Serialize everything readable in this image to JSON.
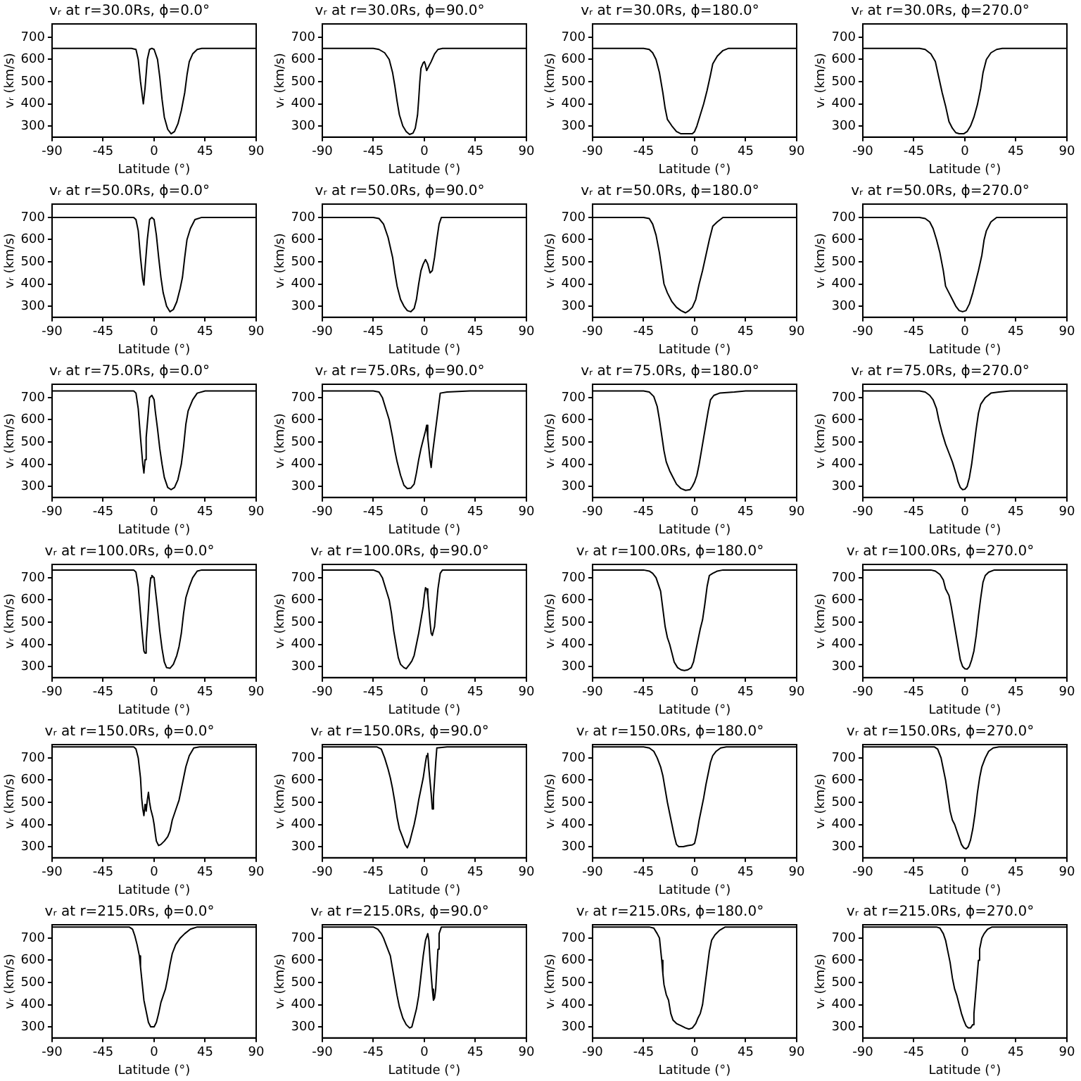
{
  "chart_data": [
    {
      "type": "line",
      "title": "vᵣ at r=30.0Rs, ϕ=0.0°",
      "xlabel": "Latitude (°)",
      "ylabel": "vᵣ (km/s)",
      "color": "#000000",
      "xlim": [
        -90,
        90
      ],
      "xticks": [
        -90,
        -45,
        0,
        45,
        90
      ],
      "ylim": [
        250,
        760
      ],
      "yticks": [
        300,
        400,
        500,
        600,
        700
      ],
      "x": [
        -90,
        -20,
        -16,
        -14,
        -12,
        -10,
        -9.5,
        -8,
        -6,
        -4,
        -2,
        0,
        3,
        5,
        7,
        9,
        12,
        15,
        18,
        21,
        24,
        27,
        29,
        31,
        34,
        38,
        42,
        90
      ],
      "values": [
        650,
        650,
        645,
        600,
        500,
        420,
        400,
        470,
        600,
        645,
        650,
        645,
        600,
        520,
        420,
        340,
        285,
        265,
        275,
        310,
        370,
        450,
        530,
        590,
        625,
        645,
        650,
        650
      ]
    },
    {
      "type": "line",
      "title": "vᵣ at r=30.0Rs, ϕ=90.0°",
      "xlabel": "Latitude (°)",
      "ylabel": "vᵣ (km/s)",
      "color": "#000000",
      "xlim": [
        -90,
        90
      ],
      "xticks": [
        -90,
        -45,
        0,
        45,
        90
      ],
      "ylim": [
        250,
        760
      ],
      "yticks": [
        300,
        400,
        500,
        600,
        700
      ],
      "x": [
        -90,
        -45,
        -40,
        -35,
        -31,
        -28,
        -26,
        -24,
        -22,
        -19,
        -16,
        -13,
        -10,
        -8,
        -6,
        -5,
        -4,
        -3,
        -1,
        0,
        1,
        2,
        4,
        6,
        9,
        12,
        16,
        90
      ],
      "values": [
        650,
        650,
        645,
        630,
        600,
        540,
        480,
        410,
        350,
        300,
        275,
        262,
        268,
        290,
        350,
        420,
        500,
        560,
        585,
        590,
        575,
        550,
        570,
        590,
        625,
        645,
        650,
        650
      ]
    },
    {
      "type": "line",
      "title": "vᵣ at r=30.0Rs, ϕ=180.0°",
      "xlabel": "Latitude (°)",
      "ylabel": "vᵣ (km/s)",
      "color": "#000000",
      "xlim": [
        -90,
        90
      ],
      "xticks": [
        -90,
        -45,
        0,
        45,
        90
      ],
      "ylim": [
        250,
        760
      ],
      "yticks": [
        300,
        400,
        500,
        600,
        700
      ],
      "x": [
        -90,
        -45,
        -40,
        -37,
        -34,
        -31,
        -28,
        -26,
        -24,
        -20,
        -16,
        -12,
        -6,
        -2,
        0,
        2,
        5,
        8,
        11,
        14,
        16,
        20,
        25,
        30,
        90
      ],
      "values": [
        650,
        650,
        645,
        630,
        600,
        540,
        450,
        380,
        330,
        300,
        275,
        265,
        265,
        265,
        275,
        300,
        350,
        400,
        460,
        530,
        580,
        615,
        640,
        650,
        650
      ]
    },
    {
      "type": "line",
      "title": "vᵣ at r=30.0Rs, ϕ=270.0°",
      "xlabel": "Latitude (°)",
      "ylabel": "vᵣ (km/s)",
      "color": "#000000",
      "xlim": [
        -90,
        90
      ],
      "xticks": [
        -90,
        -45,
        0,
        45,
        90
      ],
      "ylim": [
        250,
        760
      ],
      "yticks": [
        300,
        400,
        500,
        600,
        700
      ],
      "x": [
        -90,
        -40,
        -35,
        -30,
        -26,
        -23,
        -20,
        -17,
        -14,
        -11,
        -8,
        -5,
        -1,
        2,
        5,
        8,
        11,
        14,
        16,
        19,
        23,
        28,
        33,
        90
      ],
      "values": [
        650,
        650,
        645,
        625,
        590,
        520,
        450,
        390,
        320,
        290,
        270,
        265,
        265,
        275,
        300,
        340,
        395,
        470,
        540,
        600,
        630,
        645,
        650,
        650
      ]
    },
    {
      "type": "line",
      "title": "vᵣ at r=50.0Rs, ϕ=0.0°",
      "xlabel": "Latitude (°)",
      "ylabel": "vᵣ (km/s)",
      "color": "#000000",
      "xlim": [
        -90,
        90
      ],
      "xticks": [
        -90,
        -45,
        0,
        45,
        90
      ],
      "ylim": [
        250,
        760
      ],
      "yticks": [
        300,
        400,
        500,
        600,
        700
      ],
      "x": [
        -90,
        -18,
        -16,
        -14,
        -12,
        -10,
        -9,
        -8,
        -6,
        -4,
        -2,
        0,
        2,
        4,
        6,
        8,
        11,
        14,
        17,
        20,
        23,
        25,
        27,
        29,
        32,
        36,
        42,
        90
      ],
      "values": [
        700,
        700,
        690,
        640,
        520,
        420,
        395,
        470,
        600,
        690,
        700,
        690,
        620,
        520,
        430,
        360,
        300,
        275,
        285,
        320,
        380,
        430,
        520,
        600,
        650,
        690,
        700,
        700
      ]
    },
    {
      "type": "line",
      "title": "vᵣ at r=50.0Rs, ϕ=90.0°",
      "xlabel": "Latitude (°)",
      "ylabel": "vᵣ (km/s)",
      "color": "#000000",
      "xlim": [
        -90,
        90
      ],
      "xticks": [
        -90,
        -45,
        0,
        45,
        90
      ],
      "ylim": [
        250,
        760
      ],
      "yticks": [
        300,
        400,
        500,
        600,
        700
      ],
      "x": [
        -90,
        -45,
        -40,
        -36,
        -32,
        -28,
        -26,
        -24,
        -21,
        -18,
        -15,
        -12,
        -9,
        -7,
        -5,
        -3,
        -1,
        1,
        3,
        5,
        7,
        9,
        11,
        13,
        15,
        90
      ],
      "values": [
        700,
        700,
        695,
        670,
        610,
        520,
        450,
        390,
        330,
        300,
        280,
        275,
        290,
        330,
        400,
        460,
        490,
        510,
        490,
        450,
        460,
        520,
        600,
        670,
        700,
        700
      ]
    },
    {
      "type": "line",
      "title": "vᵣ at r=50.0Rs, ϕ=180.0°",
      "xlabel": "Latitude (°)",
      "ylabel": "vᵣ (km/s)",
      "color": "#000000",
      "xlim": [
        -90,
        90
      ],
      "xticks": [
        -90,
        -45,
        0,
        45,
        90
      ],
      "ylim": [
        250,
        760
      ],
      "yticks": [
        300,
        400,
        500,
        600,
        700
      ],
      "x": [
        -90,
        -45,
        -40,
        -37,
        -34,
        -31,
        -29,
        -27,
        -24,
        -20,
        -16,
        -12,
        -8,
        -5,
        -2,
        1,
        4,
        7,
        10,
        13,
        16,
        20,
        25,
        90
      ],
      "values": [
        700,
        700,
        695,
        670,
        620,
        540,
        470,
        400,
        360,
        320,
        295,
        280,
        270,
        280,
        295,
        330,
        400,
        460,
        530,
        600,
        660,
        680,
        700,
        700
      ]
    },
    {
      "type": "line",
      "title": "vᵣ at r=50.0Rs, ϕ=270.0°",
      "xlabel": "Latitude (°)",
      "ylabel": "vᵣ (km/s)",
      "color": "#000000",
      "xlim": [
        -90,
        90
      ],
      "xticks": [
        -90,
        -45,
        0,
        45,
        90
      ],
      "ylim": [
        250,
        760
      ],
      "yticks": [
        300,
        400,
        500,
        600,
        700
      ],
      "x": [
        -90,
        -40,
        -35,
        -31,
        -28,
        -25,
        -22,
        -19,
        -17,
        -14,
        -11,
        -8,
        -5,
        -2,
        1,
        4,
        7,
        9,
        12,
        15,
        17,
        19,
        23,
        28,
        90
      ],
      "values": [
        700,
        700,
        695,
        680,
        650,
        600,
        540,
        460,
        390,
        360,
        330,
        300,
        280,
        275,
        280,
        310,
        360,
        400,
        460,
        530,
        600,
        640,
        680,
        700,
        700
      ]
    },
    {
      "type": "line",
      "title": "vᵣ at r=75.0Rs, ϕ=0.0°",
      "xlabel": "Latitude (°)",
      "ylabel": "vᵣ (km/s)",
      "color": "#000000",
      "xlim": [
        -90,
        90
      ],
      "xticks": [
        -90,
        -45,
        0,
        45,
        90
      ],
      "ylim": [
        250,
        760
      ],
      "yticks": [
        300,
        400,
        500,
        600,
        700
      ],
      "x": [
        -90,
        -18,
        -16,
        -14,
        -12,
        -10,
        -9,
        -8,
        -7,
        -5,
        -4,
        -2,
        0,
        1,
        3,
        5,
        7,
        9,
        12,
        15,
        18,
        21,
        24,
        26,
        28,
        30,
        34,
        38,
        45,
        90
      ],
      "values": [
        730,
        730,
        720,
        650,
        520,
        400,
        360,
        420,
        520,
        640,
        700,
        710,
        690,
        640,
        560,
        470,
        400,
        340,
        295,
        285,
        295,
        330,
        400,
        480,
        580,
        640,
        690,
        720,
        730,
        730
      ]
    },
    {
      "type": "line",
      "title": "vᵣ at r=75.0Rs, ϕ=90.0°",
      "xlabel": "Latitude (°)",
      "ylabel": "vᵣ (km/s)",
      "color": "#000000",
      "xlim": [
        -90,
        90
      ],
      "xticks": [
        -90,
        -45,
        0,
        45,
        90
      ],
      "ylim": [
        250,
        760
      ],
      "yticks": [
        300,
        400,
        500,
        600,
        700
      ],
      "x": [
        -90,
        -45,
        -40,
        -37,
        -34,
        -31,
        -28,
        -26,
        -24,
        -21,
        -18,
        -15,
        -12,
        -9,
        -7,
        -5,
        -3,
        -1,
        1,
        2,
        3,
        5,
        6,
        7,
        9,
        11,
        13,
        14,
        20,
        40,
        90
      ],
      "values": [
        730,
        730,
        725,
        700,
        650,
        600,
        520,
        460,
        410,
        350,
        305,
        290,
        292,
        310,
        360,
        420,
        470,
        510,
        550,
        575,
        520,
        420,
        385,
        440,
        520,
        600,
        680,
        720,
        725,
        730,
        730
      ]
    },
    {
      "type": "line",
      "title": "vᵣ at r=75.0Rs, ϕ=180.0°",
      "xlabel": "Latitude (°)",
      "ylabel": "vᵣ (km/s)",
      "color": "#000000",
      "xlim": [
        -90,
        90
      ],
      "xticks": [
        -90,
        -45,
        0,
        45,
        90
      ],
      "ylim": [
        250,
        760
      ],
      "yticks": [
        300,
        400,
        500,
        600,
        700
      ],
      "x": [
        -90,
        -45,
        -40,
        -36,
        -33,
        -31,
        -29,
        -27,
        -25,
        -22,
        -19,
        -16,
        -12,
        -8,
        -4,
        -2,
        0,
        2,
        4,
        6,
        8,
        10,
        12,
        14,
        17,
        22,
        35,
        45,
        90
      ],
      "values": [
        730,
        730,
        725,
        705,
        660,
        600,
        530,
        460,
        410,
        370,
        340,
        310,
        290,
        282,
        285,
        300,
        320,
        350,
        400,
        460,
        520,
        580,
        640,
        690,
        710,
        720,
        725,
        730,
        730
      ]
    },
    {
      "type": "line",
      "title": "vᵣ at r=75.0Rs, ϕ=270.0°",
      "xlabel": "Latitude (°)",
      "ylabel": "vᵣ (km/s)",
      "color": "#000000",
      "xlim": [
        -90,
        90
      ],
      "xticks": [
        -90,
        -45,
        0,
        45,
        90
      ],
      "ylim": [
        250,
        760
      ],
      "yticks": [
        300,
        400,
        500,
        600,
        700
      ],
      "x": [
        -90,
        -40,
        -35,
        -31,
        -28,
        -25,
        -23,
        -20,
        -17,
        -14,
        -11,
        -8,
        -6,
        -4,
        -2,
        0,
        2,
        4,
        6,
        8,
        10,
        12,
        14,
        18,
        23,
        30,
        40,
        90
      ],
      "values": [
        730,
        730,
        725,
        710,
        690,
        650,
        600,
        540,
        490,
        450,
        410,
        360,
        320,
        295,
        285,
        287,
        300,
        340,
        400,
        480,
        560,
        630,
        670,
        700,
        720,
        725,
        730,
        730
      ]
    },
    {
      "type": "line",
      "title": "vᵣ at r=100.0Rs, ϕ=0.0°",
      "xlabel": "Latitude (°)",
      "ylabel": "vᵣ (km/s)",
      "color": "#000000",
      "xlim": [
        -90,
        90
      ],
      "xticks": [
        -90,
        -45,
        0,
        45,
        90
      ],
      "ylim": [
        250,
        760
      ],
      "yticks": [
        300,
        400,
        500,
        600,
        700
      ],
      "x": [
        -90,
        -18,
        -16,
        -14,
        -12,
        -10,
        -9,
        -8,
        -7,
        -6,
        -5,
        -4,
        -3,
        -2,
        0,
        1,
        3,
        5,
        7,
        9,
        11,
        14,
        17,
        20,
        22,
        24,
        26,
        28,
        31,
        34,
        38,
        42,
        90
      ],
      "values": [
        735,
        735,
        725,
        660,
        540,
        420,
        370,
        360,
        410,
        480,
        560,
        650,
        700,
        710,
        700,
        650,
        560,
        460,
        380,
        320,
        295,
        292,
        310,
        350,
        390,
        450,
        540,
        610,
        660,
        700,
        730,
        735,
        735
      ]
    },
    {
      "type": "line",
      "title": "vᵣ at r=100.0Rs, ϕ=90.0°",
      "xlabel": "Latitude (°)",
      "ylabel": "vᵣ (km/s)",
      "color": "#000000",
      "xlim": [
        -90,
        90
      ],
      "xticks": [
        -90,
        -45,
        0,
        45,
        90
      ],
      "ylim": [
        250,
        760
      ],
      "yticks": [
        300,
        400,
        500,
        600,
        700
      ],
      "x": [
        -90,
        -45,
        -40,
        -37,
        -34,
        -31,
        -29,
        -27,
        -25,
        -23,
        -21,
        -18,
        -16,
        -13,
        -11,
        -9,
        -7,
        -5,
        -3,
        -1,
        0,
        1,
        2,
        3,
        5,
        6,
        7,
        9,
        10,
        12,
        14,
        16,
        90
      ],
      "values": [
        735,
        735,
        725,
        700,
        650,
        600,
        540,
        460,
        400,
        340,
        310,
        295,
        290,
        310,
        325,
        350,
        400,
        450,
        510,
        570,
        620,
        655,
        650,
        620,
        500,
        450,
        440,
        480,
        540,
        650,
        720,
        735,
        735
      ]
    },
    {
      "type": "line",
      "title": "vᵣ at r=100.0Rs, ϕ=180.0°",
      "xlabel": "Latitude (°)",
      "ylabel": "vᵣ (km/s)",
      "color": "#000000",
      "xlim": [
        -90,
        90
      ],
      "xticks": [
        -90,
        -45,
        0,
        45,
        90
      ],
      "ylim": [
        250,
        760
      ],
      "yticks": [
        300,
        400,
        500,
        600,
        700
      ],
      "x": [
        -90,
        -45,
        -40,
        -37,
        -34,
        -32,
        -30,
        -28,
        -26,
        -24,
        -22,
        -20,
        -18,
        -15,
        -12,
        -9,
        -6,
        -3,
        -1,
        1,
        3,
        5,
        7,
        9,
        11,
        13,
        16,
        20,
        25,
        90
      ],
      "values": [
        735,
        735,
        730,
        720,
        700,
        670,
        640,
        560,
        480,
        430,
        400,
        360,
        320,
        295,
        285,
        282,
        285,
        295,
        320,
        370,
        420,
        470,
        510,
        580,
        660,
        710,
        720,
        730,
        735,
        735
      ]
    },
    {
      "type": "line",
      "title": "vᵣ at r=100.0Rs, ϕ=270.0°",
      "xlabel": "Latitude (°)",
      "ylabel": "vᵣ (km/s)",
      "color": "#000000",
      "xlim": [
        -90,
        90
      ],
      "xticks": [
        -90,
        -45,
        0,
        45,
        90
      ],
      "ylim": [
        250,
        760
      ],
      "yticks": [
        300,
        400,
        500,
        600,
        700
      ],
      "x": [
        -90,
        -30,
        -26,
        -22,
        -19,
        -17,
        -14,
        -12,
        -10,
        -8,
        -6,
        -4,
        -2,
        0,
        2,
        4,
        6,
        8,
        10,
        12,
        14,
        16,
        18,
        21,
        26,
        90
      ],
      "values": [
        735,
        735,
        730,
        715,
        690,
        650,
        620,
        570,
        510,
        450,
        390,
        330,
        300,
        290,
        288,
        300,
        330,
        370,
        440,
        530,
        610,
        680,
        710,
        725,
        735,
        735
      ]
    },
    {
      "type": "line",
      "title": "vᵣ at r=150.0Rs, ϕ=0.0°",
      "xlabel": "Latitude (°)",
      "ylabel": "vᵣ (km/s)",
      "color": "#000000",
      "xlim": [
        -90,
        90
      ],
      "xticks": [
        -90,
        -45,
        0,
        45,
        90
      ],
      "ylim": [
        250,
        760
      ],
      "yticks": [
        300,
        400,
        500,
        600,
        700
      ],
      "x": [
        -90,
        -18,
        -16,
        -14,
        -12,
        -11,
        -10,
        -9,
        -8,
        -7,
        -6,
        -5,
        -4,
        -3,
        -1,
        0,
        1,
        2,
        4,
        6,
        9,
        12,
        14,
        16,
        18,
        20,
        22,
        24,
        26,
        28,
        31,
        35,
        40,
        90
      ],
      "values": [
        750,
        750,
        740,
        700,
        610,
        520,
        470,
        440,
        490,
        460,
        510,
        545,
        500,
        470,
        430,
        400,
        360,
        325,
        305,
        310,
        325,
        345,
        370,
        420,
        450,
        480,
        510,
        560,
        610,
        660,
        710,
        745,
        750,
        750
      ]
    },
    {
      "type": "line",
      "title": "vᵣ at r=150.0Rs, ϕ=90.0°",
      "xlabel": "Latitude (°)",
      "ylabel": "vᵣ (km/s)",
      "color": "#000000",
      "xlim": [
        -90,
        90
      ],
      "xticks": [
        -90,
        -45,
        0,
        45,
        90
      ],
      "ylim": [
        250,
        760
      ],
      "yticks": [
        300,
        400,
        500,
        600,
        700
      ],
      "x": [
        -90,
        -42,
        -38,
        -35,
        -32,
        -30,
        -28,
        -26,
        -24,
        -22,
        -19,
        -17,
        -15,
        -13,
        -11,
        -9,
        -7,
        -5,
        -3,
        -1,
        1,
        2,
        3,
        4,
        6,
        7,
        8,
        9,
        10,
        11,
        20,
        90
      ],
      "values": [
        750,
        750,
        740,
        700,
        650,
        610,
        560,
        500,
        430,
        380,
        340,
        310,
        295,
        320,
        360,
        400,
        450,
        510,
        560,
        610,
        680,
        710,
        720,
        650,
        540,
        470,
        520,
        600,
        680,
        745,
        750,
        750
      ]
    },
    {
      "type": "line",
      "title": "vᵣ at r=150.0Rs, ϕ=180.0°",
      "xlabel": "Latitude (°)",
      "ylabel": "vᵣ (km/s)",
      "color": "#000000",
      "xlim": [
        -90,
        90
      ],
      "xticks": [
        -90,
        -45,
        0,
        45,
        90
      ],
      "ylim": [
        250,
        760
      ],
      "yticks": [
        300,
        400,
        500,
        600,
        700
      ],
      "x": [
        -90,
        -45,
        -40,
        -36,
        -33,
        -30,
        -28,
        -26,
        -24,
        -22,
        -20,
        -18,
        -16,
        -14,
        -10,
        -6,
        -2,
        0,
        2,
        4,
        6,
        8,
        10,
        12,
        14,
        16,
        19,
        23,
        28,
        90
      ],
      "values": [
        750,
        750,
        745,
        730,
        700,
        660,
        620,
        560,
        500,
        450,
        400,
        350,
        310,
        300,
        300,
        305,
        308,
        315,
        360,
        420,
        470,
        520,
        580,
        630,
        680,
        710,
        730,
        745,
        750,
        750
      ]
    },
    {
      "type": "line",
      "title": "vᵣ at r=150.0Rs, ϕ=270.0°",
      "xlabel": "Latitude (°)",
      "ylabel": "vᵣ (km/s)",
      "color": "#000000",
      "xlim": [
        -90,
        90
      ],
      "xticks": [
        -90,
        -45,
        0,
        45,
        90
      ],
      "ylim": [
        250,
        760
      ],
      "yticks": [
        300,
        400,
        500,
        600,
        700
      ],
      "x": [
        -90,
        -27,
        -24,
        -21,
        -19,
        -17,
        -15,
        -13,
        -11,
        -9,
        -7,
        -5,
        -3,
        -1,
        1,
        3,
        5,
        7,
        9,
        11,
        13,
        15,
        18,
        21,
        25,
        30,
        90
      ],
      "values": [
        750,
        750,
        740,
        700,
        650,
        600,
        530,
        460,
        420,
        400,
        370,
        340,
        310,
        295,
        290,
        300,
        330,
        380,
        450,
        540,
        610,
        660,
        700,
        730,
        745,
        750,
        750
      ]
    },
    {
      "type": "line",
      "title": "vᵣ at r=215.0Rs, ϕ=0.0°",
      "xlabel": "Latitude (°)",
      "ylabel": "vᵣ (km/s)",
      "color": "#000000",
      "xlim": [
        -90,
        90
      ],
      "xticks": [
        -90,
        -45,
        0,
        45,
        90
      ],
      "ylim": [
        250,
        760
      ],
      "yticks": [
        300,
        400,
        500,
        600,
        700
      ],
      "x": [
        -90,
        -22,
        -19,
        -17,
        -15,
        -13,
        -12,
        -11,
        -10,
        -9,
        -7,
        -5,
        -3,
        0,
        2,
        4,
        6,
        8,
        10,
        12,
        14,
        16,
        19,
        23,
        27,
        32,
        38,
        90
      ],
      "values": [
        750,
        750,
        740,
        710,
        670,
        620,
        570,
        520,
        470,
        420,
        370,
        320,
        300,
        300,
        320,
        360,
        410,
        440,
        470,
        520,
        580,
        630,
        670,
        700,
        720,
        740,
        750,
        750
      ]
    },
    {
      "type": "line",
      "title": "vᵣ at r=215.0Rs, ϕ=90.0°",
      "xlabel": "Latitude (°)",
      "ylabel": "vᵣ (km/s)",
      "color": "#000000",
      "xlim": [
        -90,
        90
      ],
      "xticks": [
        -90,
        -45,
        0,
        45,
        90
      ],
      "ylim": [
        250,
        760
      ],
      "yticks": [
        300,
        400,
        500,
        600,
        700
      ],
      "x": [
        -90,
        -45,
        -41,
        -38,
        -36,
        -33,
        -30,
        -28,
        -26,
        -24,
        -22,
        -19,
        -16,
        -13,
        -11,
        -9,
        -7,
        -5,
        -3,
        -1,
        1,
        3,
        4,
        5,
        7,
        8,
        9,
        10,
        11,
        12,
        13,
        15,
        90
      ],
      "values": [
        750,
        750,
        740,
        720,
        700,
        660,
        620,
        560,
        500,
        440,
        390,
        340,
        310,
        295,
        300,
        340,
        380,
        440,
        530,
        620,
        690,
        720,
        690,
        600,
        470,
        420,
        430,
        470,
        560,
        650,
        720,
        750,
        750
      ]
    },
    {
      "type": "line",
      "title": "vᵣ at r=215.0Rs, ϕ=180.0°",
      "xlabel": "Latitude (°)",
      "ylabel": "vᵣ (km/s)",
      "color": "#000000",
      "xlim": [
        -90,
        90
      ],
      "xticks": [
        -90,
        -45,
        0,
        45,
        90
      ],
      "ylim": [
        250,
        760
      ],
      "yticks": [
        300,
        400,
        500,
        600,
        700
      ],
      "x": [
        -90,
        -40,
        -36,
        -33,
        -31,
        -30,
        -29,
        -28,
        -27,
        -25,
        -23,
        -21,
        -19,
        -16,
        -12,
        -8,
        -5,
        -2,
        1,
        3,
        5,
        7,
        9,
        11,
        13,
        15,
        18,
        22,
        27,
        90
      ],
      "values": [
        750,
        750,
        745,
        720,
        700,
        650,
        600,
        540,
        490,
        445,
        420,
        360,
        330,
        315,
        305,
        295,
        290,
        295,
        315,
        340,
        360,
        400,
        480,
        560,
        640,
        690,
        715,
        735,
        750,
        750
      ]
    },
    {
      "type": "line",
      "title": "vᵣ at r=215.0Rs, ϕ=270.0°",
      "xlabel": "Latitude (°)",
      "ylabel": "vᵣ (km/s)",
      "color": "#000000",
      "xlim": [
        -90,
        90
      ],
      "xticks": [
        -90,
        -45,
        0,
        45,
        90
      ],
      "ylim": [
        250,
        760
      ],
      "yticks": [
        300,
        400,
        500,
        600,
        700
      ],
      "x": [
        -90,
        -25,
        -22,
        -19,
        -17,
        -15,
        -13,
        -11,
        -9,
        -7,
        -5,
        -3,
        -1,
        1,
        3,
        5,
        7,
        8,
        9,
        10,
        11,
        12,
        13,
        15,
        17,
        20,
        24,
        90
      ],
      "values": [
        750,
        750,
        745,
        720,
        690,
        640,
        590,
        520,
        470,
        440,
        400,
        360,
        330,
        305,
        295,
        295,
        310,
        360,
        420,
        480,
        540,
        600,
        650,
        700,
        720,
        740,
        750,
        750
      ]
    }
  ]
}
